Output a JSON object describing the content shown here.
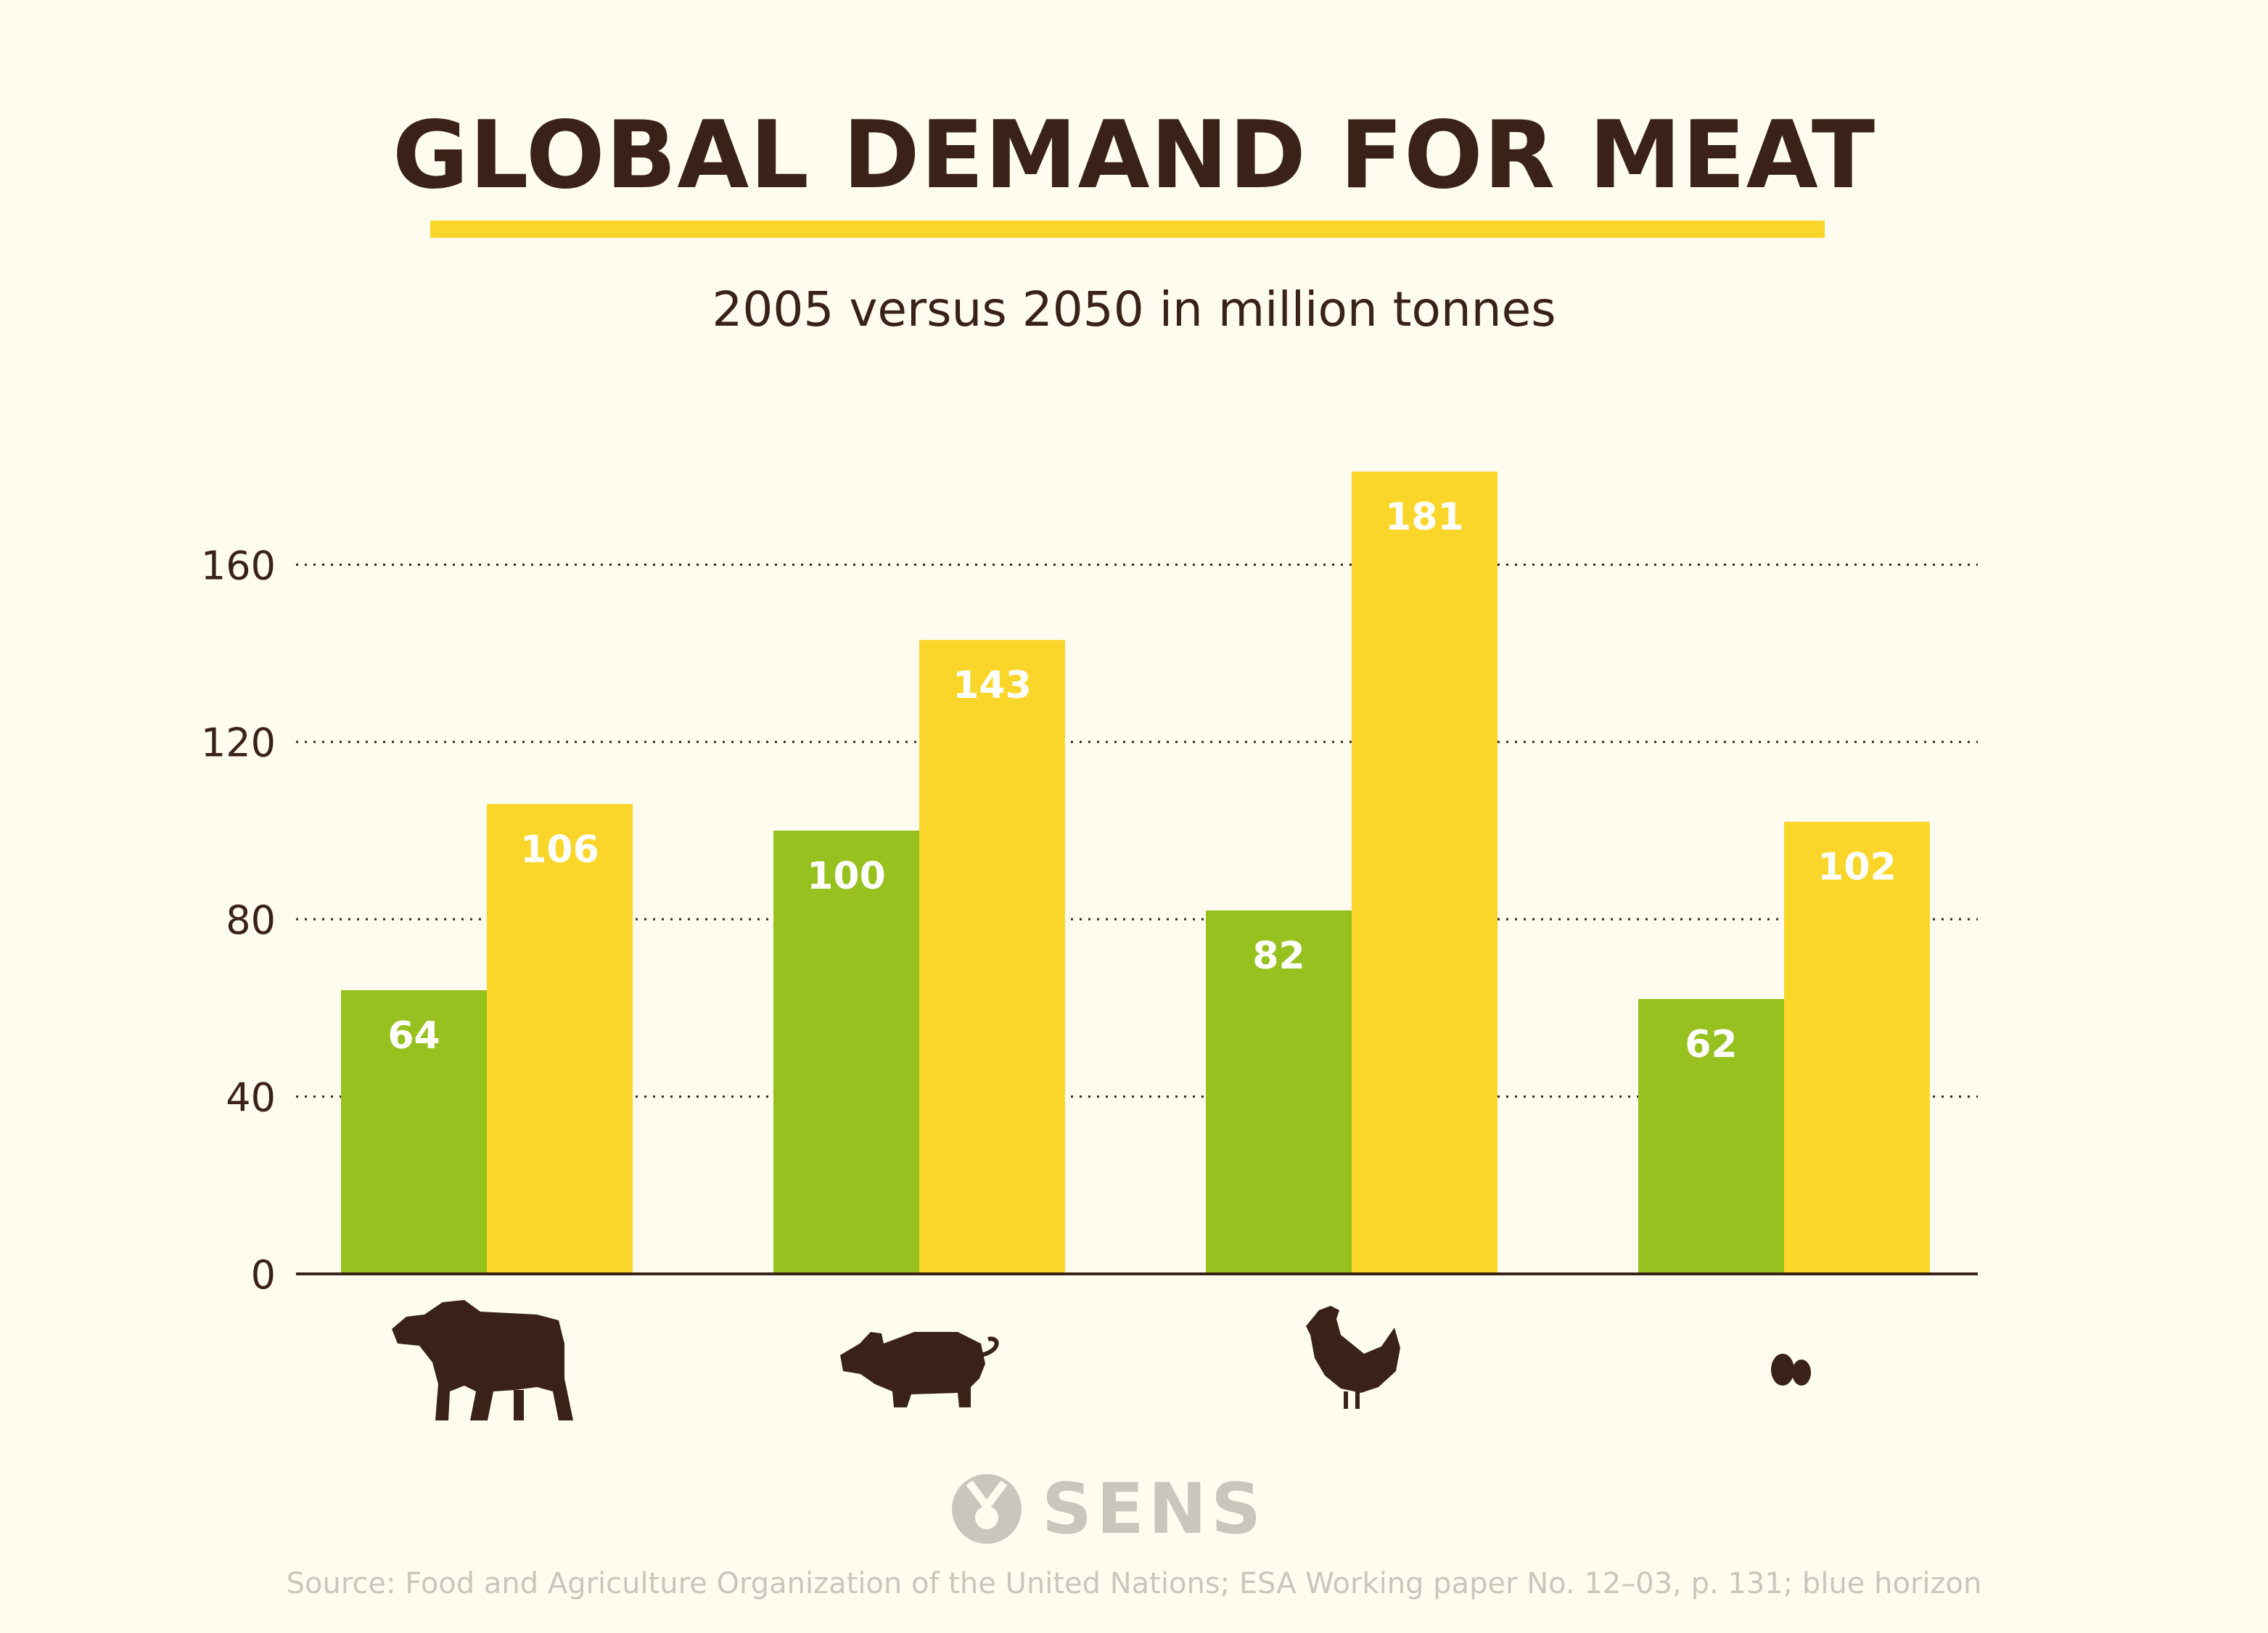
{
  "title": "GLOBAL DEMAND FOR MEAT",
  "subtitle": "2005 versus 2050 in million tonnes",
  "colors": {
    "background": "#fdfcef",
    "series_2005": "#97c11f",
    "series_2050": "#fbd62a",
    "text_dark": "#3a2218",
    "muted": "#c9c7bd"
  },
  "chart_data": {
    "type": "bar",
    "title": "GLOBAL DEMAND FOR MEAT",
    "subtitle": "2005 versus 2050 in million tonnes",
    "categories": [
      "cattle-icon",
      "pig-icon",
      "chicken-icon",
      "eggs-icon"
    ],
    "series": [
      {
        "values": [
          64,
          100,
          82,
          62
        ],
        "color": "#97c11f"
      },
      {
        "values": [
          106,
          143,
          181,
          102
        ],
        "color": "#fbd62a"
      }
    ],
    "data_labels": [
      [
        "64",
        "100",
        "82",
        "62"
      ],
      [
        "106",
        "143",
        "181",
        "102"
      ]
    ],
    "y_ticks": [
      "0",
      "40",
      "80",
      "120",
      "160"
    ],
    "ylim": [
      0,
      181
    ],
    "grid": "dotted horizontal",
    "xlabel": "",
    "ylabel": ""
  },
  "logo": {
    "text": "SENS"
  },
  "source": "Source: Food and Agriculture Organization of the United Nations; ESA Working paper No. 12–03, p. 131;  blue horizon"
}
